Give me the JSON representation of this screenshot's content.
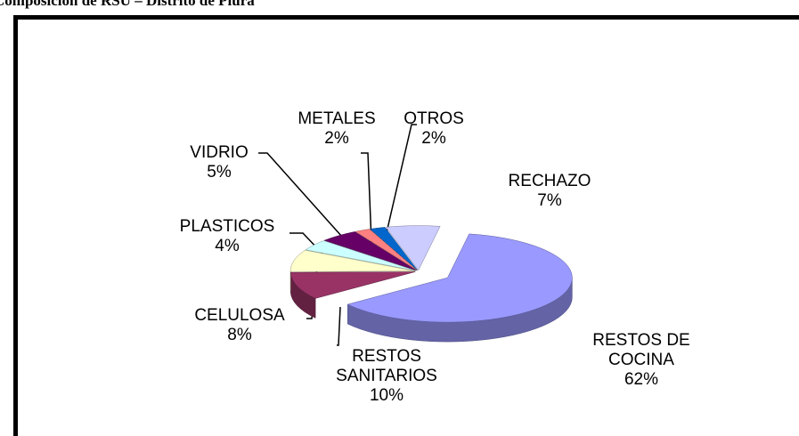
{
  "chart_data": {
    "type": "pie",
    "title": "Composición de RSU – Distrito de Piura",
    "categories": [
      "RESTOS DE COCINA",
      "RESTOS SANITARIOS",
      "CELULOSA",
      "PLASTICOS",
      "VIDRIO",
      "METALES",
      "OTROS",
      "RECHAZO"
    ],
    "values": [
      62,
      10,
      8,
      4,
      5,
      2,
      2,
      7
    ],
    "value_labels": [
      "62%",
      "10%",
      "8%",
      "4%",
      "5%",
      "2%",
      "2%",
      "7%"
    ],
    "colors": [
      "#9999ff",
      "#993366",
      "#ffffcc",
      "#ccffff",
      "#660066",
      "#ff8080",
      "#0066cc",
      "#ccccff"
    ]
  }
}
